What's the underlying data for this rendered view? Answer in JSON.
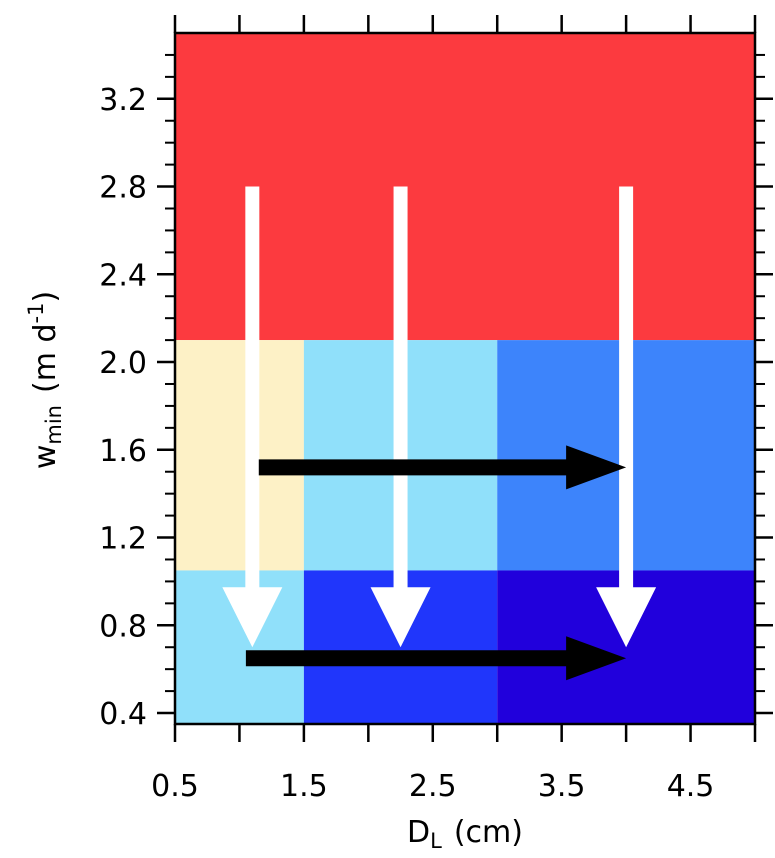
{
  "chart_data": {
    "type": "heatmap",
    "title": "",
    "xlabel": "D",
    "xlabel_sub": "L",
    "xlabel_units": "(cm)",
    "ylabel": "w",
    "ylabel_sub": "min",
    "ylabel_units_prefix": "(m d",
    "ylabel_units_sup": "-1",
    "ylabel_units_suffix": ")",
    "xlim": [
      0.5,
      5.0
    ],
    "ylim": [
      0.35,
      3.5
    ],
    "xticks": [
      0.5,
      1.5,
      2.5,
      3.5,
      4.5
    ],
    "xtick_labels": [
      "0.5",
      "1.5",
      "2.5",
      "3.5",
      "4.5"
    ],
    "yticks": [
      0.4,
      0.8,
      1.2,
      1.6,
      2.0,
      2.4,
      2.8,
      3.2
    ],
    "ytick_labels": [
      "0.4",
      "0.8",
      "1.2",
      "1.6",
      "2.0",
      "2.4",
      "2.8",
      "3.2"
    ],
    "grid": false,
    "cells": [
      {
        "x0": 0.5,
        "x1": 5.0,
        "y0": 2.1,
        "y1": 3.5,
        "color": "#fc3a3f"
      },
      {
        "x0": 0.5,
        "x1": 1.5,
        "y0": 1.05,
        "y1": 2.1,
        "color": "#fdf1c6"
      },
      {
        "x0": 1.5,
        "x1": 3.0,
        "y0": 1.05,
        "y1": 2.1,
        "color": "#90e0fa"
      },
      {
        "x0": 3.0,
        "x1": 5.0,
        "y0": 1.05,
        "y1": 2.1,
        "color": "#3d84fb"
      },
      {
        "x0": 0.5,
        "x1": 1.5,
        "y0": 0.35,
        "y1": 1.05,
        "color": "#90e0fa"
      },
      {
        "x0": 1.5,
        "x1": 3.0,
        "y0": 0.35,
        "y1": 1.05,
        "color": "#2036fb"
      },
      {
        "x0": 3.0,
        "x1": 5.0,
        "y0": 0.35,
        "y1": 1.05,
        "color": "#2100dc"
      }
    ],
    "arrows": [
      {
        "color": "#ffffff",
        "direction": "down",
        "x0": 1.1,
        "y0": 2.8,
        "x1": 1.1,
        "y1": 0.7
      },
      {
        "color": "#ffffff",
        "direction": "down",
        "x0": 2.25,
        "y0": 2.8,
        "x1": 2.25,
        "y1": 0.7
      },
      {
        "color": "#ffffff",
        "direction": "down",
        "x0": 4.0,
        "y0": 2.8,
        "x1": 4.0,
        "y1": 0.7
      },
      {
        "color": "#000000",
        "direction": "right",
        "x0": 1.15,
        "y0": 1.52,
        "x1": 4.0,
        "y1": 1.52
      },
      {
        "color": "#000000",
        "direction": "right",
        "x0": 1.05,
        "y0": 0.65,
        "x1": 4.0,
        "y1": 0.65
      }
    ]
  }
}
